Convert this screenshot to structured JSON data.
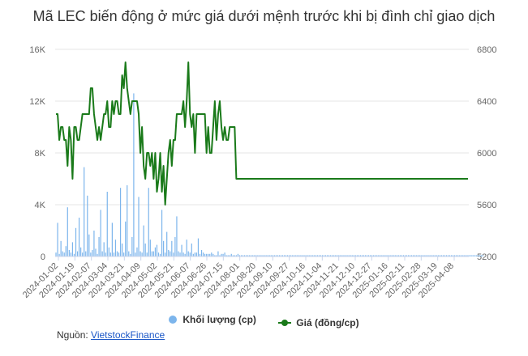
{
  "title": "Mã LEC biến động ở mức giá dưới mệnh trước khi bị đình chỉ giao dịch",
  "legend": {
    "volume": "Khối lượng (cp)",
    "price": "Giá (đồng/cp)"
  },
  "source": {
    "label": "Nguồn:",
    "link": "VietstockFinance"
  },
  "colors": {
    "volume": "#7cb5ec",
    "price": "#1a7a1a",
    "grid": "#e6e6e6"
  },
  "chart_data": {
    "type": "bar+line",
    "x_ticks": [
      "2024-01-02",
      "2024-01-19",
      "2024-02-07",
      "2024-03-04",
      "2024-03-21",
      "2024-04-09",
      "2024-05-02",
      "2024-05-21",
      "2024-06-07",
      "2024-06-26",
      "2024-07-15",
      "2024-08-01",
      "2024-08-20",
      "2024-09-10",
      "2024-09-27",
      "2024-10-16",
      "2024-11-04",
      "2024-11-21",
      "2024-12-10",
      "2024-12-27",
      "2025-01-16",
      "2025-02-11",
      "2025-02-28",
      "2025-03-19",
      "2025-04-08"
    ],
    "y_left": {
      "min": 0,
      "max": 16000,
      "ticks": [
        0,
        4000,
        8000,
        12000,
        16000
      ],
      "tick_labels": [
        "0",
        "4K",
        "8K",
        "12K",
        "16K"
      ]
    },
    "y_right": {
      "min": 5200,
      "max": 6800,
      "ticks": [
        5200,
        5600,
        6000,
        6400,
        6800
      ],
      "tick_labels": [
        "5200",
        "5600",
        "6000",
        "6400",
        "6800"
      ]
    },
    "series": [
      {
        "name": "Khối lượng (cp)",
        "type": "column",
        "axis": "left",
        "values": [
          300,
          2600,
          200,
          1200,
          400,
          300,
          800,
          3800,
          500,
          300,
          1100,
          200,
          2200,
          400,
          3000,
          700,
          300,
          6900,
          400,
          4700,
          1700,
          300,
          500,
          2000,
          600,
          200,
          1500,
          3600,
          400,
          1100,
          300,
          5000,
          700,
          300,
          2600,
          300,
          1300,
          400,
          300,
          5300,
          1000,
          300,
          2700,
          5500,
          400,
          200,
          1500,
          12600,
          300,
          700,
          4600,
          400,
          300,
          2400,
          1000,
          300,
          5300,
          1300,
          400,
          400,
          700,
          900,
          300,
          200,
          3600,
          1200,
          300,
          1900,
          500,
          400,
          1200,
          300,
          1500,
          3100,
          400,
          300,
          900,
          300,
          200,
          1300,
          400,
          300,
          1000,
          200,
          300,
          300,
          1400,
          200,
          500,
          300,
          200,
          200,
          200,
          200,
          300,
          200,
          100,
          100,
          400,
          100,
          200,
          200,
          300,
          100,
          100,
          100,
          200,
          100,
          100,
          100,
          200,
          100,
          100,
          100,
          100,
          100,
          100,
          100,
          100,
          100,
          100,
          100,
          100,
          100,
          100,
          100,
          100,
          100,
          100,
          100,
          100,
          100,
          100,
          100,
          100,
          100,
          100,
          100,
          100,
          100,
          100,
          100,
          100,
          100,
          100,
          100,
          100,
          100,
          100,
          100,
          100,
          100,
          100,
          100,
          100,
          100,
          100,
          100,
          100,
          100,
          100,
          100,
          100,
          100,
          100,
          100,
          100,
          100,
          100,
          100,
          100,
          100,
          100,
          100,
          100,
          100,
          100,
          100,
          100,
          100,
          100,
          100,
          100,
          100,
          100,
          100,
          100,
          100,
          100,
          100,
          100,
          100,
          100,
          100,
          100,
          100,
          100,
          100,
          100,
          100,
          100,
          100,
          100,
          100,
          100,
          100,
          100,
          100,
          100,
          100,
          100,
          100,
          100,
          100,
          100,
          100,
          100,
          100,
          100,
          100,
          100,
          100,
          100,
          100,
          100,
          100,
          100,
          100,
          100,
          100,
          100,
          100,
          100,
          100,
          100,
          100,
          100,
          100,
          100,
          100,
          100,
          100,
          100,
          100,
          100,
          100,
          100,
          100,
          100,
          100,
          100,
          100,
          100,
          100,
          100,
          100,
          100,
          100,
          100
        ]
      },
      {
        "name": "Giá (đồng/cp)",
        "type": "line",
        "axis": "right",
        "values": [
          6300,
          6300,
          6100,
          6200,
          6200,
          6100,
          6100,
          5900,
          6200,
          6100,
          5800,
          6200,
          6200,
          6100,
          6100,
          6200,
          6300,
          6300,
          6300,
          6300,
          6300,
          6500,
          6500,
          6300,
          6200,
          6100,
          6200,
          6100,
          6200,
          6300,
          6300,
          6400,
          6200,
          6200,
          6400,
          6300,
          6400,
          6400,
          6300,
          6300,
          6600,
          6500,
          6700,
          6500,
          6400,
          6300,
          6400,
          6400,
          6400,
          6400,
          6300,
          6000,
          6200,
          5900,
          5800,
          6000,
          6000,
          5900,
          6000,
          5800,
          6000,
          5700,
          5800,
          6000,
          5700,
          5900,
          5600,
          5800,
          6000,
          6100,
          5900,
          6100,
          6100,
          6300,
          6300,
          6300,
          6300,
          6400,
          6200,
          6400,
          6700,
          6300,
          6200,
          6300,
          6000,
          6300,
          6300,
          6300,
          6300,
          6300,
          6300,
          6000,
          6200,
          6000,
          6000,
          6200,
          6400,
          6100,
          6300,
          6400,
          6200,
          6100,
          6200,
          6100,
          6100,
          6200,
          6200,
          6200,
          6200,
          5800,
          5800,
          5800,
          5800,
          5800,
          5800,
          5800,
          5800,
          5800,
          5800,
          5800,
          5800,
          5800,
          5800,
          5800,
          5800,
          5800,
          5800,
          5800,
          5800,
          5800,
          5800,
          5800,
          5800,
          5800,
          5800,
          5800,
          5800,
          5800,
          5800,
          5800,
          5800,
          5800,
          5800,
          5800,
          5800,
          5800,
          5800,
          5800,
          5800,
          5800,
          5800,
          5800,
          5800,
          5800,
          5800,
          5800,
          5800,
          5800,
          5800,
          5800,
          5800,
          5800,
          5800,
          5800,
          5800,
          5800,
          5800,
          5800,
          5800,
          5800,
          5800,
          5800,
          5800,
          5800,
          5800,
          5800,
          5800,
          5800,
          5800,
          5800,
          5800,
          5800,
          5800,
          5800,
          5800,
          5800,
          5800,
          5800,
          5800,
          5800,
          5800,
          5800,
          5800,
          5800,
          5800,
          5800,
          5800,
          5800,
          5800,
          5800,
          5800,
          5800,
          5800,
          5800,
          5800,
          5800,
          5800,
          5800,
          5800,
          5800,
          5800,
          5800,
          5800,
          5800,
          5800,
          5800,
          5800,
          5800,
          5800,
          5800,
          5800,
          5800,
          5800,
          5800,
          5800,
          5800,
          5800,
          5800,
          5800,
          5800,
          5800,
          5800,
          5800,
          5800,
          5800,
          5800,
          5800,
          5800,
          5800,
          5800,
          5800,
          5800,
          5800,
          5800,
          5800,
          5800,
          5800,
          5800,
          5800,
          5800
        ]
      }
    ],
    "grid": true,
    "legend_position": "bottom"
  }
}
